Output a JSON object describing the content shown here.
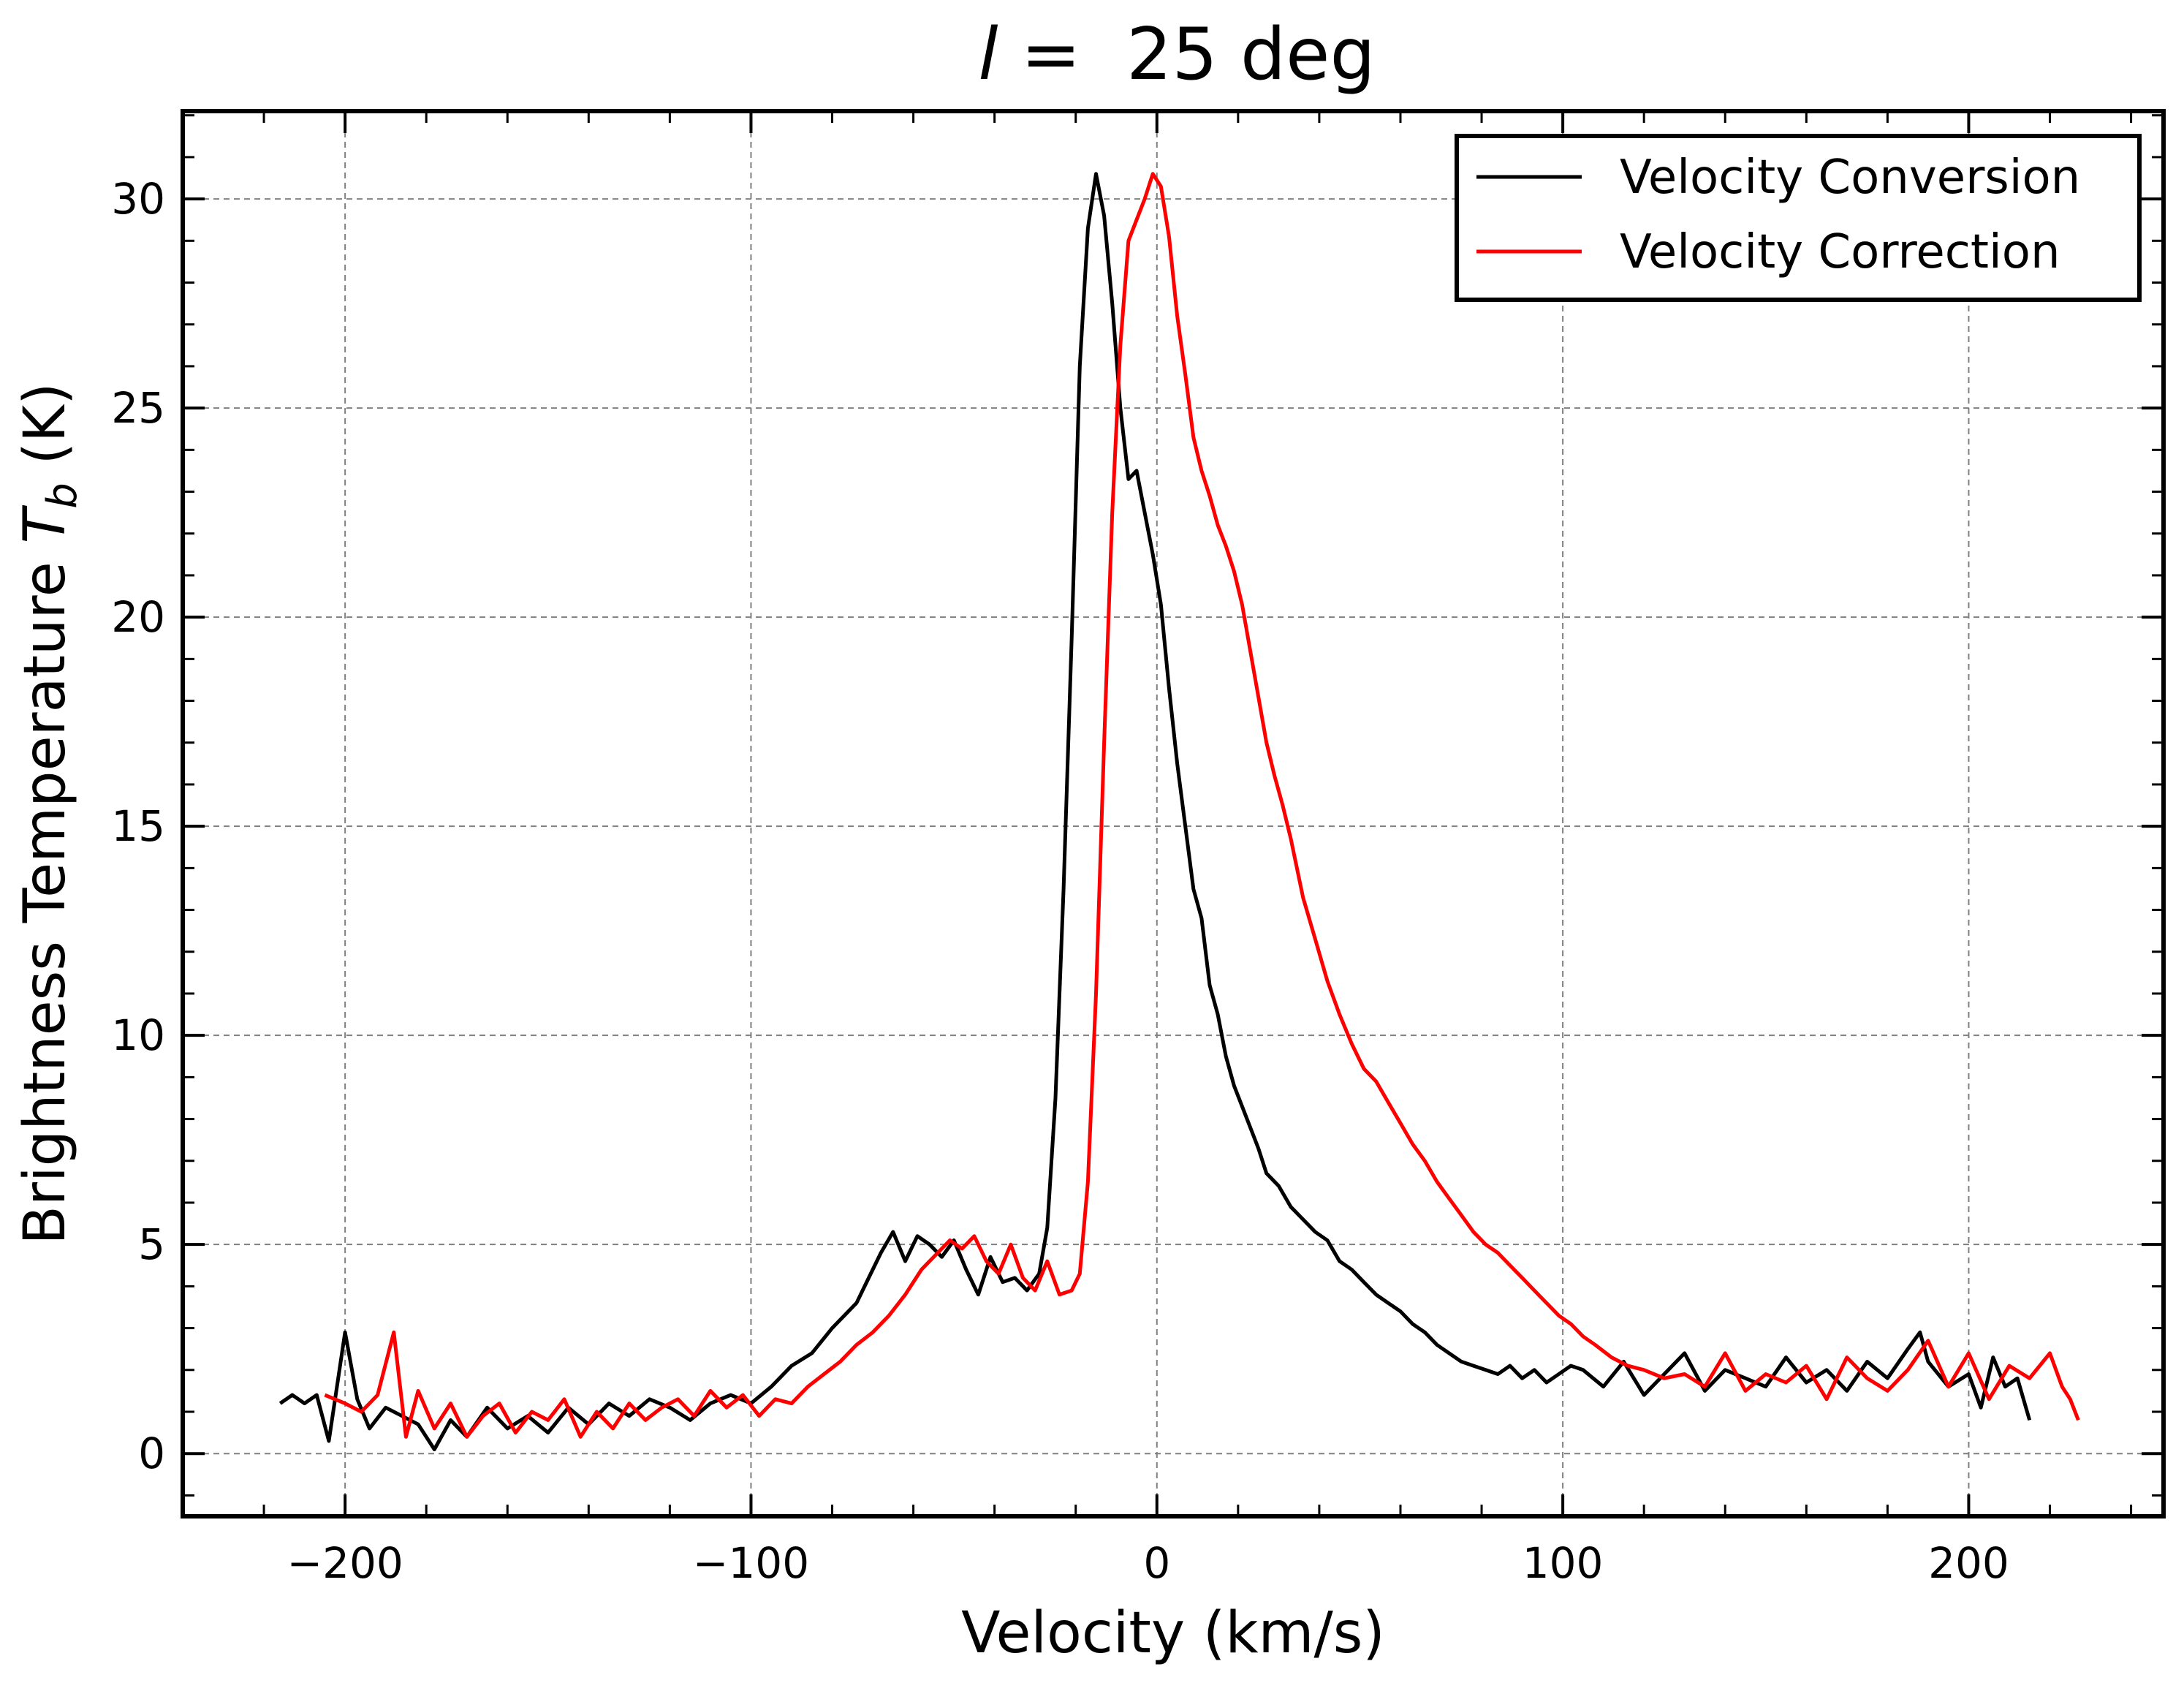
{
  "chart_data": {
    "type": "line",
    "title_var": "l",
    "title_rest": " =  25 deg",
    "xlabel": "Velocity (km/s)",
    "ylabel_main": "Brightness Temperature ",
    "ylabel_var": "T",
    "ylabel_sub": "b",
    "ylabel_unit": " (K)",
    "xlim": [
      -240,
      248
    ],
    "ylim": [
      -1.5,
      32.1
    ],
    "xticks": [
      -200,
      -100,
      0,
      100,
      200
    ],
    "xtick_labels": [
      "−200",
      "−100",
      "0",
      "100",
      "200"
    ],
    "yticks": [
      0,
      5,
      10,
      15,
      20,
      25,
      30
    ],
    "ytick_labels": [
      "0",
      "5",
      "10",
      "15",
      "20",
      "25",
      "30"
    ],
    "x_minor_step": 20,
    "y_minor_step": 1,
    "grid": true,
    "legend_position": "top-right",
    "series": [
      {
        "name": "Velocity Conversion",
        "color": "#000000",
        "x": [
          -216,
          -213,
          -210,
          -207,
          -204,
          -200,
          -197,
          -194,
          -190,
          -186,
          -182,
          -178,
          -174,
          -170,
          -165,
          -160,
          -155,
          -150,
          -145,
          -140,
          -135,
          -130,
          -125,
          -120,
          -115,
          -110,
          -105,
          -100,
          -95,
          -90,
          -85,
          -80,
          -77,
          -74,
          -71,
          -68,
          -65,
          -62,
          -59,
          -56,
          -53,
          -50,
          -47,
          -44,
          -41,
          -38,
          -35,
          -32,
          -29,
          -27,
          -25,
          -23,
          -21,
          -19,
          -17,
          -15,
          -13,
          -11,
          -9,
          -7,
          -5,
          -3,
          -1,
          1,
          3,
          5,
          7,
          9,
          11,
          13,
          15,
          17,
          19,
          21,
          23,
          25,
          27,
          30,
          33,
          36,
          39,
          42,
          45,
          48,
          51,
          54,
          57,
          60,
          63,
          66,
          69,
          72,
          75,
          78,
          81,
          84,
          87,
          90,
          93,
          96,
          99,
          102,
          105,
          110,
          115,
          120,
          125,
          130,
          135,
          140,
          145,
          150,
          155,
          160,
          165,
          170,
          175,
          180,
          185,
          188,
          190,
          195,
          200,
          203,
          206,
          209,
          212,
          215
        ],
        "y": [
          1.2,
          1.4,
          1.2,
          1.4,
          0.3,
          2.9,
          1.3,
          0.6,
          1.1,
          0.9,
          0.7,
          0.1,
          0.8,
          0.4,
          1.1,
          0.6,
          0.9,
          0.5,
          1.1,
          0.7,
          1.2,
          0.9,
          1.3,
          1.1,
          0.8,
          1.2,
          1.4,
          1.2,
          1.6,
          2.1,
          2.4,
          3.0,
          3.3,
          3.6,
          4.2,
          4.8,
          5.3,
          4.6,
          5.2,
          5.0,
          4.7,
          5.1,
          4.4,
          3.8,
          4.7,
          4.1,
          4.2,
          3.9,
          4.3,
          5.4,
          8.5,
          13.5,
          19.5,
          26.0,
          29.3,
          30.6,
          29.6,
          27.5,
          25.0,
          23.3,
          23.5,
          22.5,
          21.5,
          20.3,
          18.3,
          16.5,
          15.0,
          13.5,
          12.8,
          11.2,
          10.5,
          9.5,
          8.8,
          8.3,
          7.8,
          7.3,
          6.7,
          6.4,
          5.9,
          5.6,
          5.3,
          5.1,
          4.6,
          4.4,
          4.1,
          3.8,
          3.6,
          3.4,
          3.1,
          2.9,
          2.6,
          2.4,
          2.2,
          2.1,
          2.0,
          1.9,
          2.1,
          1.8,
          2.0,
          1.7,
          1.9,
          2.1,
          2.0,
          1.6,
          2.2,
          1.4,
          1.9,
          2.4,
          1.5,
          2.0,
          1.8,
          1.6,
          2.3,
          1.7,
          2.0,
          1.5,
          2.2,
          1.8,
          2.5,
          2.9,
          2.2,
          1.6,
          1.9,
          1.1,
          2.3,
          1.6,
          1.8,
          0.8
        ]
      },
      {
        "name": "Velocity Correction",
        "color": "#ff0000",
        "x": [
          -205,
          -200,
          -196,
          -192,
          -188,
          -185,
          -182,
          -178,
          -174,
          -170,
          -166,
          -162,
          -158,
          -154,
          -150,
          -146,
          -142,
          -138,
          -134,
          -130,
          -126,
          -122,
          -118,
          -114,
          -110,
          -106,
          -102,
          -98,
          -94,
          -90,
          -86,
          -82,
          -78,
          -74,
          -70,
          -66,
          -62,
          -58,
          -54,
          -51,
          -48,
          -45,
          -42,
          -39,
          -36,
          -33,
          -30,
          -27,
          -24,
          -21,
          -19,
          -17,
          -15,
          -13,
          -11,
          -9,
          -7,
          -5,
          -3,
          -1,
          1,
          3,
          5,
          7,
          9,
          11,
          13,
          15,
          17,
          19,
          21,
          23,
          25,
          27,
          29,
          31,
          33,
          36,
          39,
          42,
          45,
          48,
          51,
          54,
          57,
          60,
          63,
          66,
          69,
          72,
          75,
          78,
          81,
          84,
          87,
          90,
          93,
          96,
          99,
          102,
          105,
          108,
          112,
          116,
          120,
          125,
          130,
          135,
          140,
          145,
          150,
          155,
          160,
          165,
          170,
          175,
          180,
          185,
          190,
          195,
          200,
          205,
          210,
          215,
          220,
          223,
          225,
          227
        ],
        "y": [
          1.4,
          1.2,
          1.0,
          1.4,
          2.9,
          0.4,
          1.5,
          0.6,
          1.2,
          0.4,
          0.9,
          1.2,
          0.5,
          1.0,
          0.8,
          1.3,
          0.4,
          1.0,
          0.6,
          1.2,
          0.8,
          1.1,
          1.3,
          0.9,
          1.5,
          1.1,
          1.4,
          0.9,
          1.3,
          1.2,
          1.6,
          1.9,
          2.2,
          2.6,
          2.9,
          3.3,
          3.8,
          4.4,
          4.8,
          5.1,
          4.9,
          5.2,
          4.6,
          4.3,
          5.0,
          4.2,
          3.9,
          4.6,
          3.8,
          3.9,
          4.3,
          6.5,
          11.0,
          17.0,
          22.5,
          26.5,
          29.0,
          29.5,
          30.0,
          30.6,
          30.3,
          29.1,
          27.2,
          25.8,
          24.3,
          23.5,
          22.9,
          22.2,
          21.7,
          21.1,
          20.3,
          19.2,
          18.1,
          17.0,
          16.2,
          15.5,
          14.7,
          13.3,
          12.3,
          11.3,
          10.5,
          9.8,
          9.2,
          8.9,
          8.4,
          7.9,
          7.4,
          7.0,
          6.5,
          6.1,
          5.7,
          5.3,
          5.0,
          4.8,
          4.5,
          4.2,
          3.9,
          3.6,
          3.3,
          3.1,
          2.8,
          2.6,
          2.3,
          2.1,
          2.0,
          1.8,
          1.9,
          1.6,
          2.4,
          1.5,
          1.9,
          1.7,
          2.1,
          1.3,
          2.3,
          1.8,
          1.5,
          2.0,
          2.7,
          1.6,
          2.4,
          1.3,
          2.1,
          1.8,
          2.4,
          1.6,
          1.3,
          0.8
        ]
      }
    ]
  }
}
